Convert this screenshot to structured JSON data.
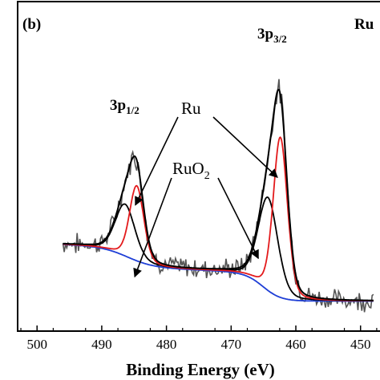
{
  "panel_label": "(b)",
  "panel_tag": "Ru",
  "chart_data": {
    "type": "line",
    "title": "",
    "xlabel": "Binding Energy (eV)",
    "ylabel": "",
    "xlim": [
      503,
      446
    ],
    "x_reversed": true,
    "ylim": [
      0,
      1
    ],
    "xticks": [
      500,
      490,
      480,
      470,
      460,
      450
    ],
    "grid": false,
    "x_range": [
      496,
      448
    ],
    "baseline": {
      "left": 0.24,
      "right": 0.02,
      "step_center": 465,
      "pre_step_slope": 0.0031,
      "post_step_slope": 0.002,
      "step_width": 1.4,
      "first_step_ratio": 0.65,
      "first_step_center": 486,
      "first_step_width": 2.0
    },
    "series": [
      {
        "role": "ru-component",
        "color": "#e31a1c",
        "peaks": [
          {
            "center": 462.4,
            "height": 0.62,
            "fwhm": 2.6
          },
          {
            "center": 484.6,
            "height": 0.29,
            "fwhm": 2.6
          }
        ]
      },
      {
        "role": "ruo2-component",
        "color": "#000000",
        "peaks": [
          {
            "center": 464.3,
            "height": 0.36,
            "fwhm": 3.6
          },
          {
            "center": 486.4,
            "height": 0.2,
            "fwhm": 3.6
          }
        ]
      },
      {
        "role": "background",
        "color": "#1f3fd6"
      },
      {
        "role": "envelope",
        "color": "#000000"
      },
      {
        "role": "raw-data",
        "color": "#555555"
      }
    ],
    "annotations": [
      {
        "base": "3p",
        "sub": "1/2",
        "x": 485
      },
      {
        "base": "3p",
        "sub": "3/2",
        "x": 462.5
      },
      {
        "text": "Ru"
      },
      {
        "base": "RuO",
        "sub": "2"
      }
    ]
  }
}
